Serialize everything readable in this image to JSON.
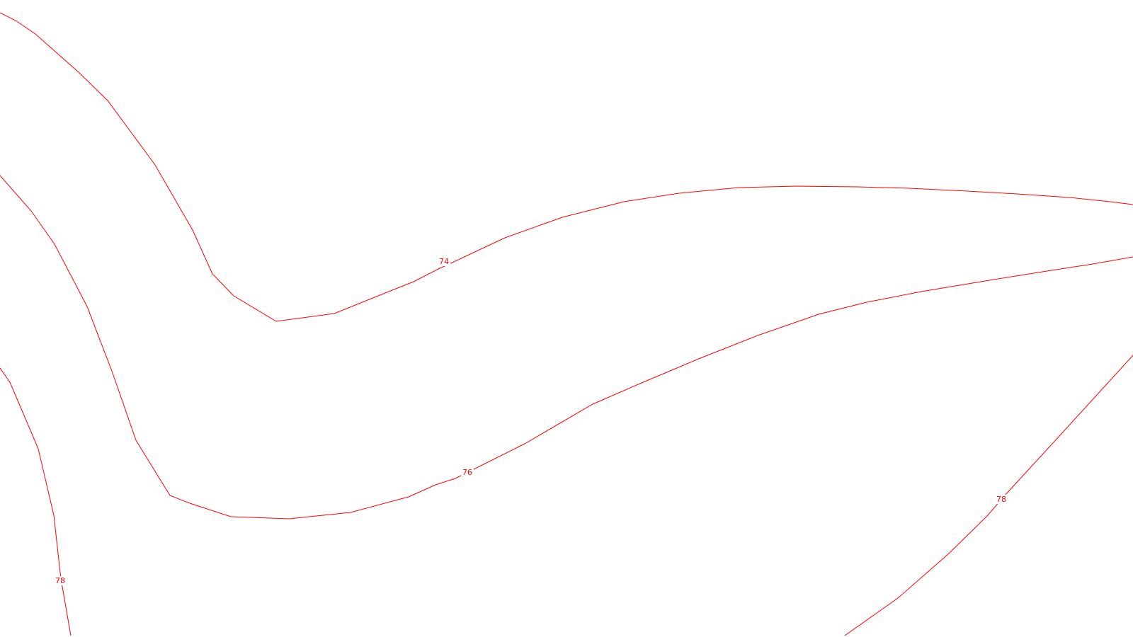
{
  "map": {
    "background": "#ffffff",
    "line_color": "#ff0000",
    "contours": [
      {
        "name": "contour-74-line",
        "label": "74"
      },
      {
        "name": "contour-76-line",
        "label": "76"
      },
      {
        "name": "contour-78-left-line",
        "label": "78"
      },
      {
        "name": "contour-78-right-line",
        "label": "78"
      }
    ]
  }
}
